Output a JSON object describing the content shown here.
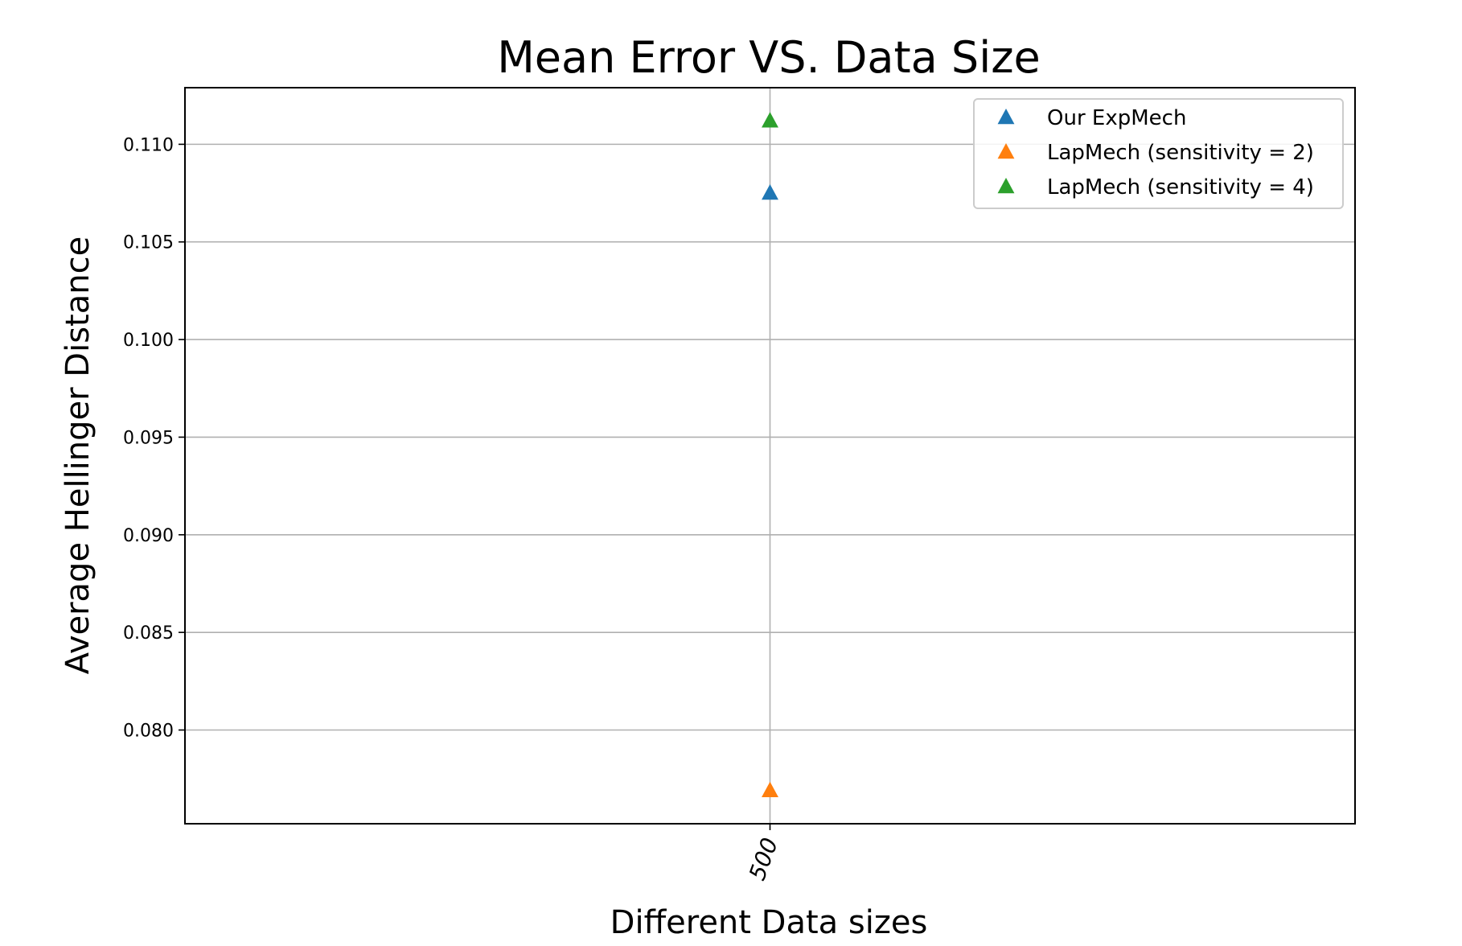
{
  "chart_data": {
    "type": "scatter",
    "title": "Mean Error VS. Data Size",
    "xlabel": "Different Data sizes",
    "ylabel": "Average Hellinger Distance",
    "categories": [
      "500"
    ],
    "y_ticks": [
      0.08,
      0.085,
      0.09,
      0.095,
      0.1,
      0.105,
      0.11
    ],
    "y_tick_labels": [
      "0.080",
      "0.085",
      "0.090",
      "0.095",
      "0.100",
      "0.105",
      "0.110"
    ],
    "ylim": [
      0.0752,
      0.1129
    ],
    "grid": true,
    "legend_position": "top-right",
    "marker": "triangle-up",
    "series": [
      {
        "name": "Our ExpMech",
        "color": "#1f77b4",
        "values": [
          0.1075
        ]
      },
      {
        "name": "LapMech (sensitivity = 2)",
        "color": "#ff7f0e",
        "values": [
          0.0769
        ]
      },
      {
        "name": "LapMech (sensitivity = 4)",
        "color": "#2ca02c",
        "values": [
          0.1112
        ]
      }
    ]
  }
}
